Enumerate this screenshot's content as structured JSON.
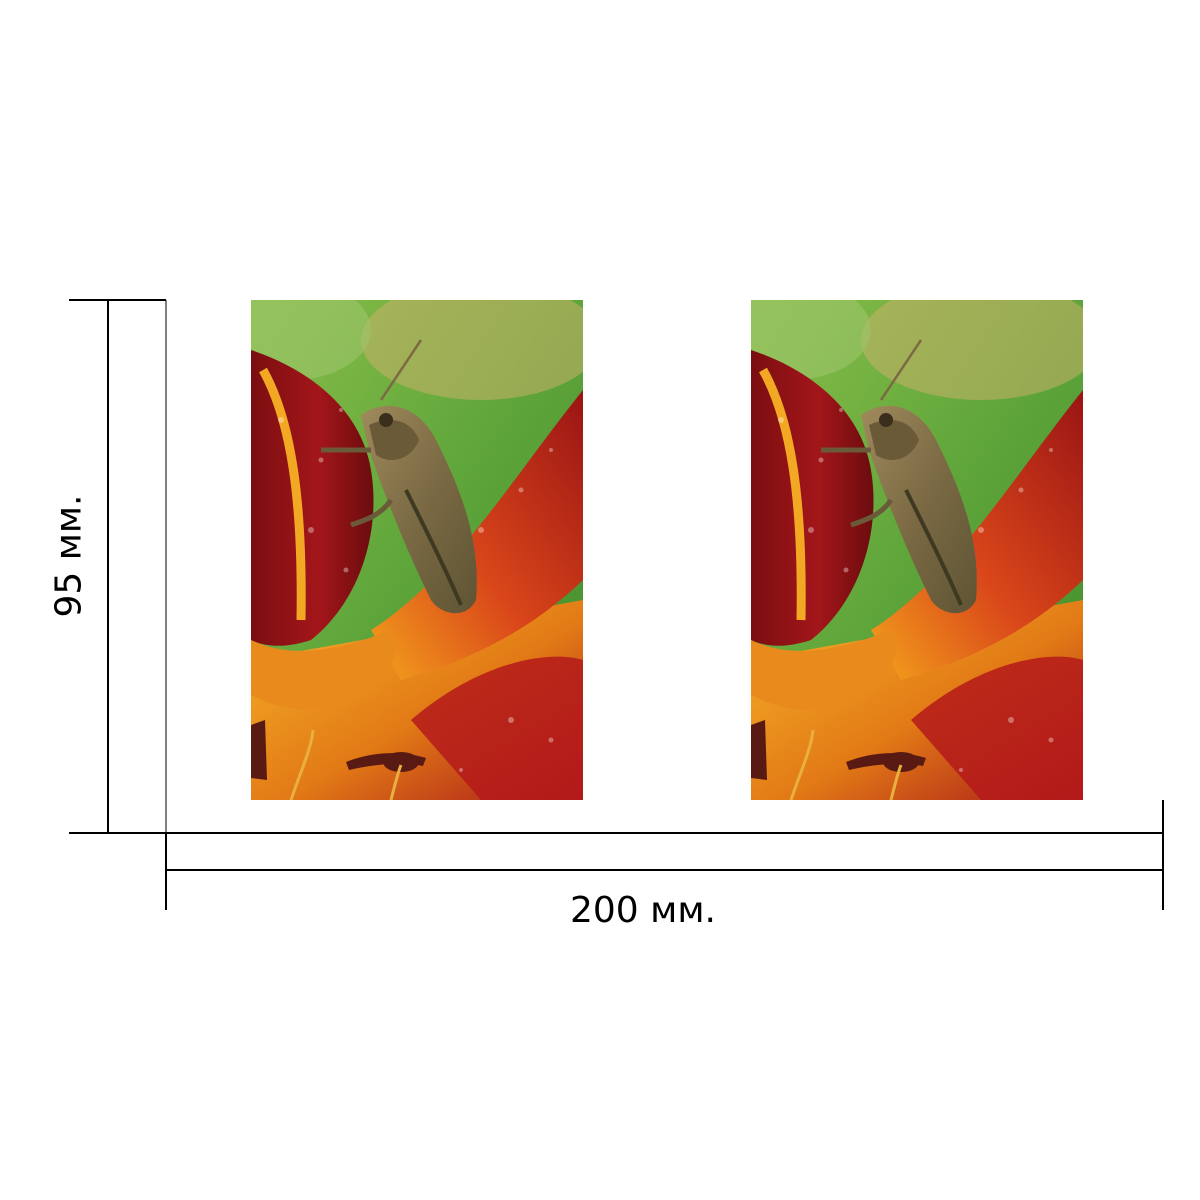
{
  "dimensions": {
    "width_label": "200 мм.",
    "height_label": "95 мм."
  },
  "photos": [
    {
      "subject": "grasshopper-on-lily"
    },
    {
      "subject": "grasshopper-on-lily"
    }
  ],
  "colors": {
    "background": "#ffffff",
    "line": "#000000",
    "petal_dark": "#8e1212",
    "petal_mid": "#c42a12",
    "petal_yellow": "#f2a018",
    "leaf_green": "#6fb03e",
    "grasshopper": "#8a7448"
  }
}
